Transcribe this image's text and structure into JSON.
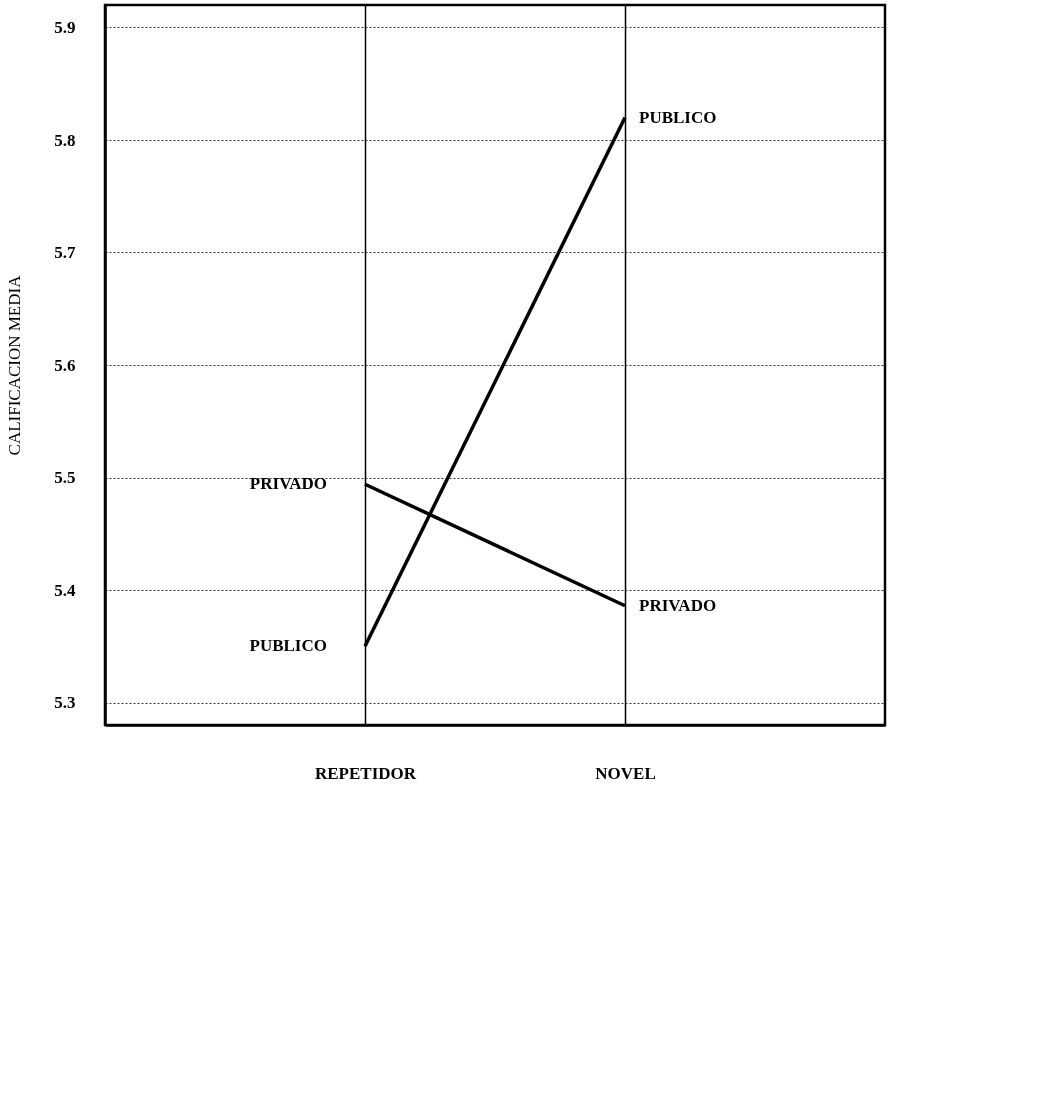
{
  "chart_data": {
    "type": "line",
    "ylabel": "CALIFICACION MEDIA",
    "categories": [
      "REPETIDOR",
      "NOVEL"
    ],
    "series": [
      {
        "name": "PUBLICO",
        "color": "#000000",
        "values": [
          5.35,
          5.82
        ]
      },
      {
        "name": "PRIVADO",
        "color": "#000000",
        "values": [
          5.494,
          5.386
        ]
      }
    ],
    "ylim": [
      5.28,
      5.92
    ],
    "yticks": [
      5.3,
      5.4,
      5.5,
      5.6,
      5.7,
      5.8,
      5.9
    ],
    "grid": true,
    "marker": "none",
    "line_style": "solid"
  }
}
